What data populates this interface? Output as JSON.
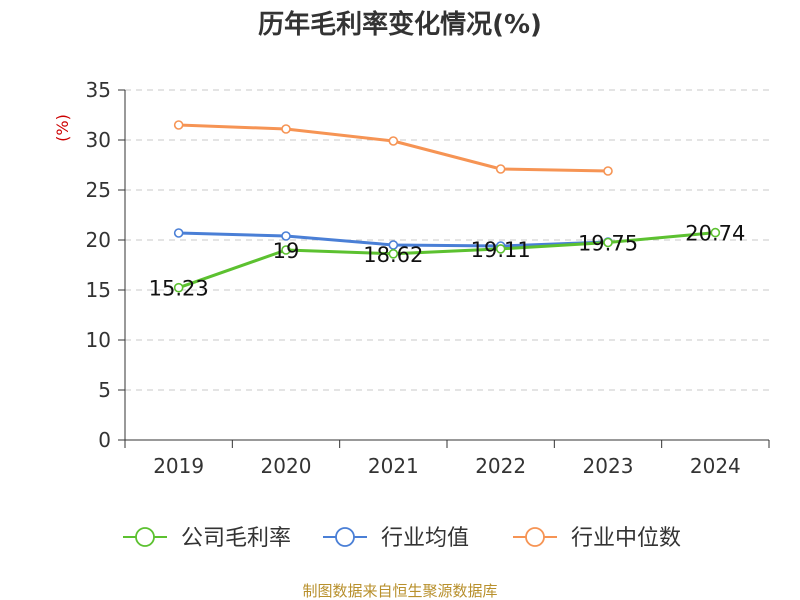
{
  "chart_data": {
    "type": "line",
    "title": "历年毛利率变化情况(%)",
    "ylabel": "(%)",
    "xlabel": "",
    "categories": [
      "2019",
      "2020",
      "2021",
      "2022",
      "2023",
      "2024"
    ],
    "ylim": [
      0,
      35
    ],
    "yticks": [
      0,
      5,
      10,
      15,
      20,
      25,
      30,
      35
    ],
    "grid": true,
    "legend_position": "bottom",
    "series": [
      {
        "name": "公司毛利率",
        "color": "#5cc130",
        "values": [
          15.23,
          19,
          18.62,
          19.11,
          19.75,
          20.74
        ],
        "labels": [
          "15.23",
          "19",
          "18.62",
          "19.11",
          "19.75",
          "20.74"
        ]
      },
      {
        "name": "行业均值",
        "color": "#4a7fd6",
        "values": [
          20.7,
          20.4,
          19.5,
          19.4,
          19.8,
          null
        ]
      },
      {
        "name": "行业中位数",
        "color": "#f69454",
        "values": [
          31.5,
          31.1,
          29.9,
          27.1,
          26.9,
          null
        ]
      }
    ]
  },
  "footer": "制图数据来自恒生聚源数据库"
}
